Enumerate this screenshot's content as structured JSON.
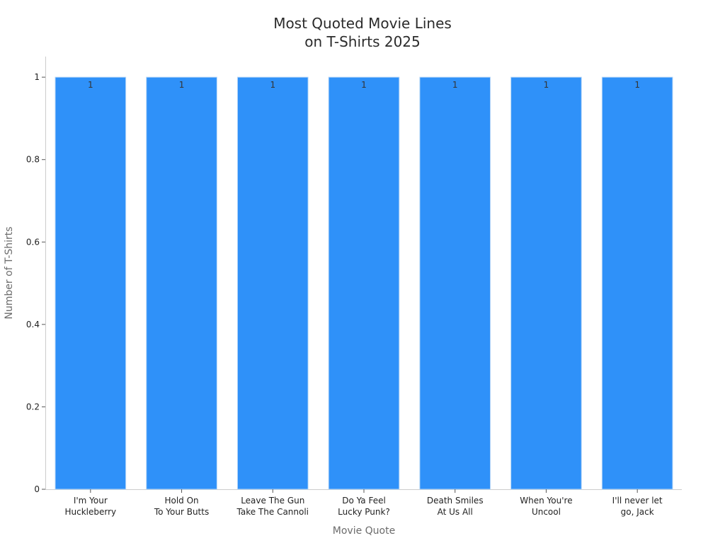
{
  "chart_data": {
    "type": "bar",
    "title_lines": [
      "Most Quoted Movie Lines",
      "on T-Shirts 2025"
    ],
    "xlabel": "Movie Quote",
    "ylabel": "Number of T-Shirts",
    "categories": [
      [
        "I'm Your",
        "Huckleberry"
      ],
      [
        "Hold On",
        "To Your Butts"
      ],
      [
        "Leave The Gun",
        "Take The Cannoli"
      ],
      [
        "Do Ya Feel",
        "Lucky Punk?"
      ],
      [
        "Death Smiles",
        "At Us All"
      ],
      [
        "When You're",
        "Uncool"
      ],
      [
        "I'll never let",
        "go, Jack"
      ]
    ],
    "values": [
      1,
      1,
      1,
      1,
      1,
      1,
      1
    ],
    "data_labels": [
      "1",
      "1",
      "1",
      "1",
      "1",
      "1",
      "1"
    ],
    "ylim": [
      0,
      1.05
    ],
    "yticks": [
      0,
      0.2,
      0.4,
      0.6,
      0.8,
      1
    ],
    "ytick_labels": [
      "0",
      "0.2",
      "0.4",
      "0.6",
      "0.8",
      "1"
    ],
    "grid": false,
    "bar_color": "#2f91f9",
    "bar_edge_color": "#b9d8f7",
    "axis_color": "#cccccc"
  }
}
